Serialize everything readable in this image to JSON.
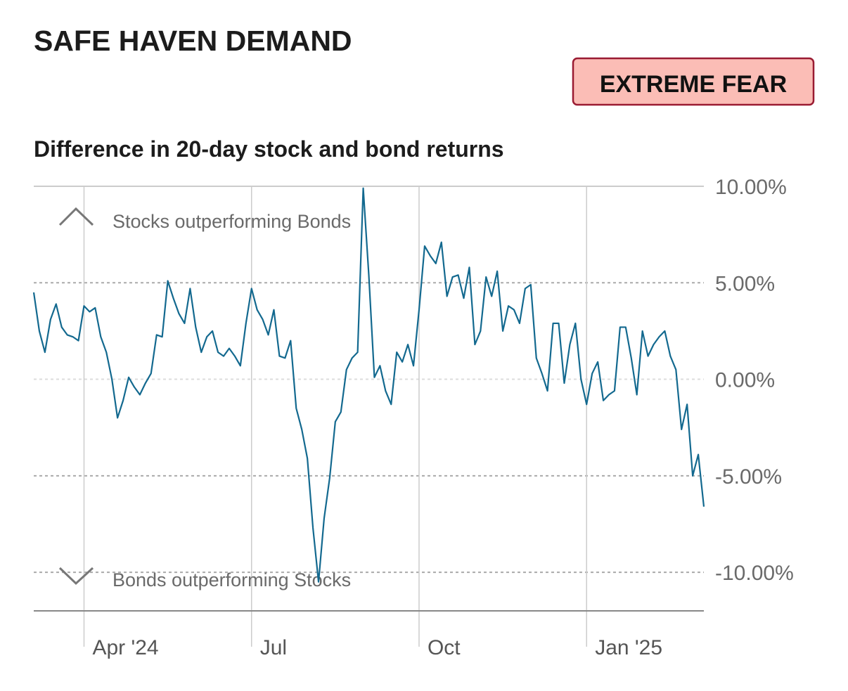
{
  "chart_data": {
    "type": "line",
    "title": "SAFE HAVEN DEMAND",
    "badge": "EXTREME FEAR",
    "subtitle": "Difference in 20-day stock and bond returns",
    "annotations": [
      "Stocks outperforming Bonds",
      "Bonds outperforming Stocks"
    ],
    "color": "#13698f",
    "grid": true,
    "ylim": [
      -12,
      10
    ],
    "yticks": [
      {
        "value": 10,
        "label": "10.00%"
      },
      {
        "value": 5,
        "label": "5.00%"
      },
      {
        "value": 0,
        "label": "0.00%"
      },
      {
        "value": -5,
        "label": "-5.00%"
      },
      {
        "value": -10,
        "label": "-10.00%"
      }
    ],
    "categories": [
      null,
      null,
      null,
      null,
      null,
      null,
      null,
      null,
      null,
      "Apr '24",
      null,
      null,
      null,
      null,
      null,
      null,
      null,
      null,
      null,
      null,
      null,
      null,
      null,
      null,
      null,
      null,
      null,
      null,
      null,
      null,
      null,
      null,
      null,
      null,
      null,
      null,
      null,
      null,
      null,
      "Jul",
      null,
      null,
      null,
      null,
      null,
      null,
      null,
      null,
      null,
      null,
      null,
      null,
      null,
      null,
      null,
      null,
      null,
      null,
      null,
      null,
      null,
      null,
      null,
      null,
      null,
      null,
      null,
      null,
      null,
      "Oct",
      null,
      null,
      null,
      null,
      null,
      null,
      null,
      null,
      null,
      null,
      null,
      null,
      null,
      null,
      null,
      null,
      null,
      null,
      null,
      null,
      null,
      null,
      null,
      null,
      null,
      null,
      null,
      null,
      null,
      "Jan '25",
      null,
      null,
      null,
      null,
      null,
      null,
      null,
      null,
      null,
      null,
      null,
      null,
      null,
      null,
      null,
      null,
      null,
      null,
      null,
      null,
      null
    ],
    "values": [
      4.5,
      2.5,
      1.4,
      3.1,
      3.9,
      2.7,
      2.3,
      2.2,
      2.0,
      3.8,
      3.5,
      3.7,
      2.2,
      1.4,
      0,
      -2.0,
      -1.1,
      0.1,
      -0.4,
      -0.8,
      -0.2,
      0.3,
      2.3,
      2.2,
      5.1,
      4.2,
      3.4,
      2.9,
      4.7,
      2.7,
      1.4,
      2.2,
      2.5,
      1.4,
      1.2,
      1.6,
      1.2,
      0.7,
      2.9,
      4.7,
      3.6,
      3.1,
      2.3,
      3.6,
      1.2,
      1.1,
      2.0,
      -1.5,
      -2.6,
      -4.1,
      -7.7,
      -10.5,
      -7.2,
      -5.1,
      -2.2,
      -1.7,
      0.5,
      1.1,
      1.4,
      9.9,
      5.4,
      0.1,
      0.7,
      -0.6,
      -1.3,
      1.4,
      0.9,
      1.8,
      0.7,
      3.6,
      6.9,
      6.4,
      6.0,
      7.1,
      4.3,
      5.3,
      5.4,
      4.2,
      5.8,
      1.8,
      2.5,
      5.3,
      4.3,
      5.6,
      2.5,
      3.8,
      3.6,
      2.9,
      4.7,
      4.9,
      1.1,
      0.3,
      -0.6,
      2.9,
      2.9,
      -0.2,
      1.8,
      2.9,
      0,
      -1.3,
      0.3,
      0.9,
      -1.1,
      -0.8,
      -0.6,
      2.7,
      2.7,
      1.1,
      -0.8,
      2.5,
      1.2,
      1.8,
      2.2,
      2.5,
      1.2,
      0.5,
      -2.6,
      -1.3,
      -5.0,
      -3.9,
      -6.6
    ]
  }
}
